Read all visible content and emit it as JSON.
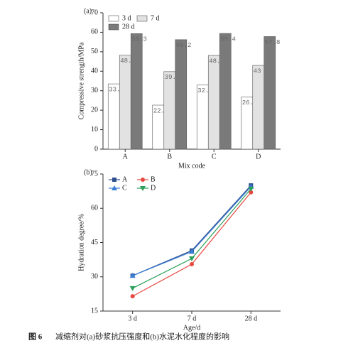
{
  "chart_data": [
    {
      "type": "bar",
      "label": "(a)",
      "ylabel": "Compressive strength/MPa",
      "xlabel": "Mix code",
      "categories": [
        "A",
        "B",
        "C",
        "D"
      ],
      "series": [
        {
          "name": "3 d",
          "color": "#ffffff",
          "values": [
            33.5,
            22.6,
            32.9,
            26.7
          ]
        },
        {
          "name": "7 d",
          "color": "#e2e2e2",
          "values": [
            48.2,
            39.8,
            48.1,
            43
          ]
        },
        {
          "name": "28 d",
          "color": "#7a7a7a",
          "values": [
            59.3,
            56.2,
            59.4,
            57.8
          ]
        }
      ],
      "ylim": [
        0,
        70
      ],
      "yticks": [
        0,
        10,
        20,
        30,
        40,
        50,
        60,
        70
      ],
      "legend": "upper left"
    },
    {
      "type": "line",
      "label": "(b)",
      "ylabel": "Hydration degree/%",
      "xlabel": "Age/d",
      "categories": [
        "3 d",
        "7 d",
        "28 d"
      ],
      "series": [
        {
          "name": "A",
          "color": "#2f4f8f",
          "marker": "square",
          "values": [
            30.5,
            41.5,
            70
          ]
        },
        {
          "name": "B",
          "color": "#e8473f",
          "marker": "circle",
          "values": [
            21.5,
            35.5,
            67
          ]
        },
        {
          "name": "C",
          "color": "#3a7fd5",
          "marker": "triangle",
          "values": [
            30.5,
            41,
            69.5
          ]
        },
        {
          "name": "D",
          "color": "#2ca05a",
          "marker": "triangle-down",
          "values": [
            25,
            38,
            68.5
          ]
        }
      ],
      "ylim": [
        15,
        75
      ],
      "yticks": [
        15,
        30,
        45,
        60,
        75
      ],
      "legend": "upper left"
    }
  ],
  "caption": {
    "label": "图 6",
    "text": "减缩剂对(a)砂浆抗压强度和(b)水泥水化程度的影响"
  }
}
